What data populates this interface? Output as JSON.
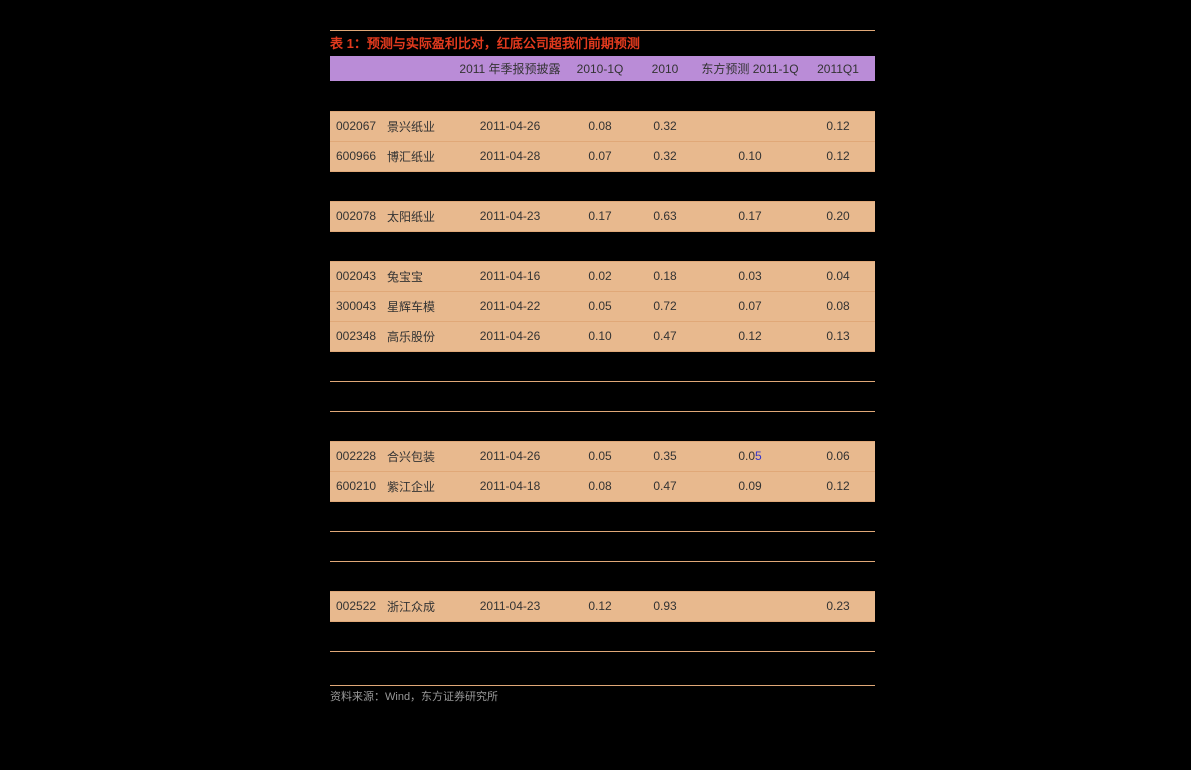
{
  "table_title": "表 1：预测与实际盈利比对，红底公司超我们前期预测",
  "source_note": "资料来源：Wind，东方证券研究所",
  "colors": {
    "background": "#000000",
    "title_color": "#e23a1e",
    "header_bg": "#ba8cd7",
    "row_highlight_bg": "#e8b98e",
    "border_color": "#e0a878",
    "source_text": "#999999"
  },
  "columns": [
    {
      "label": ""
    },
    {
      "label": ""
    },
    {
      "label": "2011 年季报预披露"
    },
    {
      "label": "2010-1Q"
    },
    {
      "label": "2010"
    },
    {
      "label": "东方预测 2011-1Q"
    },
    {
      "label": "2011Q1"
    }
  ],
  "rows": [
    {
      "highlighted": false,
      "divider": false,
      "cells": [
        "",
        "",
        "",
        "",
        "",
        "",
        ""
      ]
    },
    {
      "highlighted": true,
      "divider": true,
      "cells": [
        "002067",
        "景兴纸业",
        "2011-04-26",
        "0.08",
        "0.32",
        "",
        "0.12"
      ]
    },
    {
      "highlighted": true,
      "divider": true,
      "cells": [
        "600966",
        "博汇纸业",
        "2011-04-28",
        "0.07",
        "0.32",
        "0.10",
        "0.12"
      ]
    },
    {
      "highlighted": false,
      "divider": true,
      "cells": [
        "",
        "",
        "",
        "",
        "",
        "",
        ""
      ]
    },
    {
      "highlighted": true,
      "divider": true,
      "cells": [
        "002078",
        "太阳纸业",
        "2011-04-23",
        "0.17",
        "0.63",
        "0.17",
        "0.20"
      ]
    },
    {
      "highlighted": false,
      "divider": true,
      "cells": [
        "",
        "",
        "",
        "",
        "",
        "",
        ""
      ]
    },
    {
      "highlighted": true,
      "divider": true,
      "cells": [
        "002043",
        "兔宝宝",
        "2011-04-16",
        "0.02",
        "0.18",
        "0.03",
        "0.04"
      ]
    },
    {
      "highlighted": true,
      "divider": true,
      "cells": [
        "300043",
        "星辉车模",
        "2011-04-22",
        "0.05",
        "0.72",
        "0.07",
        "0.08"
      ]
    },
    {
      "highlighted": true,
      "divider": true,
      "cells": [
        "002348",
        "高乐股份",
        "2011-04-26",
        "0.10",
        "0.47",
        "0.12",
        "0.13"
      ]
    },
    {
      "highlighted": false,
      "divider": true,
      "cells": [
        "",
        "",
        "",
        "",
        "",
        "",
        ""
      ]
    },
    {
      "highlighted": false,
      "divider": true,
      "cells": [
        "",
        "",
        "",
        "",
        "",
        "",
        ""
      ]
    },
    {
      "highlighted": false,
      "divider": true,
      "cells": [
        "",
        "",
        "",
        "",
        "",
        "",
        ""
      ]
    },
    {
      "highlighted": true,
      "divider": true,
      "cells": [
        "002228",
        "合兴包装",
        "2011-04-26",
        "0.05",
        "0.35",
        "0.05",
        "0.06"
      ],
      "special_cell_idx": 5,
      "special_blue_char": "5"
    },
    {
      "highlighted": true,
      "divider": true,
      "cells": [
        "600210",
        "紫江企业",
        "2011-04-18",
        "0.08",
        "0.47",
        "0.09",
        "0.12"
      ]
    },
    {
      "highlighted": false,
      "divider": true,
      "cells": [
        "",
        "",
        "",
        "",
        "",
        "",
        ""
      ]
    },
    {
      "highlighted": false,
      "divider": true,
      "cells": [
        "",
        "",
        "",
        "",
        "",
        "",
        ""
      ]
    },
    {
      "highlighted": false,
      "divider": true,
      "cells": [
        "",
        "",
        "",
        "",
        "",
        "",
        ""
      ]
    },
    {
      "highlighted": true,
      "divider": true,
      "cells": [
        "002522",
        "浙江众成",
        "2011-04-23",
        "0.12",
        "0.93",
        "",
        "0.23"
      ]
    },
    {
      "highlighted": false,
      "divider": true,
      "cells": [
        "",
        "",
        "",
        "",
        "",
        "",
        ""
      ]
    },
    {
      "highlighted": false,
      "divider": true,
      "cells": [
        "",
        "",
        "",
        "",
        "",
        "",
        ""
      ]
    }
  ]
}
